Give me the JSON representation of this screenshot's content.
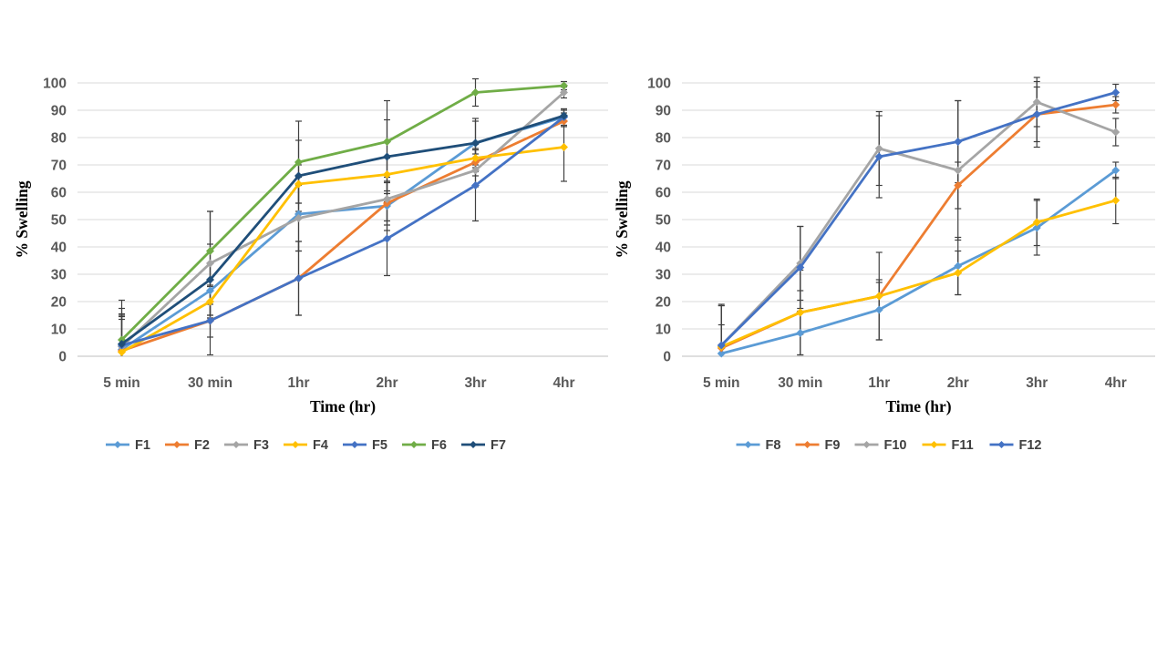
{
  "styles": {
    "background": "#ffffff",
    "gridline": "#d9d9d9",
    "axis_line": "#bfbfbf",
    "error_bar": "#404040",
    "tick_label": "#595959",
    "axis_title": "#000000",
    "legend_text": "#404040"
  },
  "chart_data": [
    {
      "type": "line",
      "title": "",
      "xlabel": "Time (hr)",
      "ylabel": "% Swelling",
      "categories": [
        "5 min",
        "30 min",
        "1hr",
        "2hr",
        "3hr",
        "4hr"
      ],
      "ylim": [
        0,
        100
      ],
      "ytick_step": 10,
      "grid": true,
      "legend_position": "bottom",
      "error_bars": true,
      "series": [
        {
          "name": "F1",
          "color": "#5B9BD5",
          "values": [
            2.5,
            24,
            52,
            55,
            78,
            87.5
          ],
          "errors": [
            11,
            10,
            13.5,
            9,
            8,
            3
          ]
        },
        {
          "name": "F2",
          "color": "#ED7D31",
          "values": [
            2,
            13,
            28.5,
            56,
            71,
            86
          ],
          "errors": [
            4,
            6,
            13.5,
            8,
            5,
            2
          ]
        },
        {
          "name": "F3",
          "color": "#A5A5A5",
          "values": [
            3.5,
            34,
            50.5,
            57.5,
            68,
            96.5
          ],
          "errors": [
            12,
            19,
            12,
            8,
            6,
            2
          ]
        },
        {
          "name": "F4",
          "color": "#FFC000",
          "values": [
            1.5,
            20,
            63,
            66.5,
            72.5,
            76.5
          ],
          "errors": [
            13,
            6,
            7,
            6,
            5,
            12.5
          ]
        },
        {
          "name": "F5",
          "color": "#4472C4",
          "values": [
            4,
            13,
            28.5,
            43,
            62.5,
            87.5
          ],
          "errors": [
            11,
            12.5,
            13.5,
            13.5,
            13,
            3
          ]
        },
        {
          "name": "F6",
          "color": "#70AD47",
          "values": [
            6,
            38.5,
            71,
            78.5,
            96.5,
            99
          ],
          "errors": [
            14.5,
            14.5,
            15,
            15,
            5,
            1.5
          ]
        },
        {
          "name": "F7",
          "color": "#1F4E79",
          "values": [
            4.5,
            28,
            66,
            73,
            78,
            88
          ],
          "errors": [
            13,
            13,
            13,
            13.5,
            9,
            2
          ]
        }
      ]
    },
    {
      "type": "line",
      "title": "",
      "xlabel": "Time (hr)",
      "ylabel": "% Swelling",
      "categories": [
        "5 min",
        "30 min",
        "1hr",
        "2hr",
        "3hr",
        "4hr"
      ],
      "ylim": [
        0,
        100
      ],
      "ytick_step": 10,
      "grid": true,
      "legend_position": "bottom",
      "error_bars": true,
      "series": [
        {
          "name": "F8",
          "color": "#5B9BD5",
          "values": [
            1,
            8.5,
            17,
            33,
            47,
            68
          ],
          "errors": [
            3,
            8,
            11,
            10.5,
            10,
            3
          ]
        },
        {
          "name": "F9",
          "color": "#ED7D31",
          "values": [
            3,
            16,
            22,
            62.5,
            88.5,
            92
          ],
          "errors": [
            8.5,
            8,
            5,
            8.5,
            10,
            3
          ]
        },
        {
          "name": "F10",
          "color": "#A5A5A5",
          "values": [
            4,
            34,
            76,
            68,
            93,
            82
          ],
          "errors": [
            14.5,
            13.5,
            13.5,
            25.5,
            9,
            5
          ]
        },
        {
          "name": "F11",
          "color": "#FFC000",
          "values": [
            3.5,
            16,
            22,
            30.5,
            49,
            57
          ],
          "errors": [
            15,
            15.5,
            16,
            8,
            8.5,
            8.5
          ]
        },
        {
          "name": "F12",
          "color": "#4472C4",
          "values": [
            4,
            32.5,
            73,
            78.5,
            88.5,
            96.5
          ],
          "errors": [
            15,
            15,
            15,
            15,
            12,
            3
          ]
        }
      ]
    }
  ]
}
